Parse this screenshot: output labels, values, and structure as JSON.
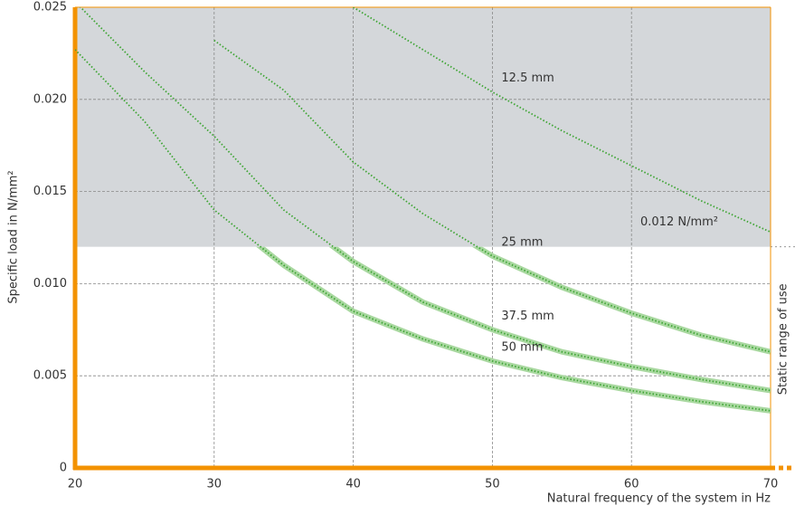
{
  "chart_data": {
    "type": "line",
    "xlabel": "Natural frequency of the system in Hz",
    "ylabel": "Specific load in N/mm²",
    "x": [
      20,
      25,
      30,
      35,
      40,
      45,
      50,
      55,
      60,
      65,
      70
    ],
    "series": [
      {
        "name": "12.5 mm",
        "color": "#3fa535",
        "values": [
          null,
          null,
          null,
          null,
          0.025,
          0.0227,
          0.0204,
          0.0183,
          0.0164,
          0.0145,
          0.0128
        ]
      },
      {
        "name": "25 mm",
        "color": "#3fa535",
        "values": [
          null,
          null,
          0.0232,
          0.0205,
          0.0166,
          0.0138,
          0.0115,
          0.0098,
          0.0084,
          0.0072,
          0.0063
        ]
      },
      {
        "name": "37.5 mm",
        "color": "#3fa535",
        "values": [
          0.0253,
          0.0215,
          0.018,
          0.014,
          0.0112,
          0.009,
          0.0075,
          0.0063,
          0.0055,
          0.0048,
          0.0042
        ]
      },
      {
        "name": "50 mm",
        "color": "#3fa535",
        "values": [
          0.0227,
          0.0188,
          0.014,
          0.011,
          0.0085,
          0.007,
          0.0058,
          0.0049,
          0.0042,
          0.0036,
          0.0031
        ]
      }
    ],
    "threshold": {
      "value": 0.012,
      "label": "0.012 N/mm²"
    },
    "threshold_region_label": "Static range of use",
    "xlim": [
      20,
      70
    ],
    "xticks": [
      20,
      30,
      40,
      50,
      60,
      70
    ],
    "ylim": [
      0,
      0.025
    ],
    "yticks": [
      0,
      0.005,
      {
        "value": 0.01,
        "label": "0.010"
      },
      0.015,
      {
        "value": 0.02,
        "label": "0.020"
      },
      0.025
    ],
    "grid": true,
    "axis_color": "#f39200",
    "region_color": "#d4d7da",
    "band_color": "#a9d8a0"
  }
}
